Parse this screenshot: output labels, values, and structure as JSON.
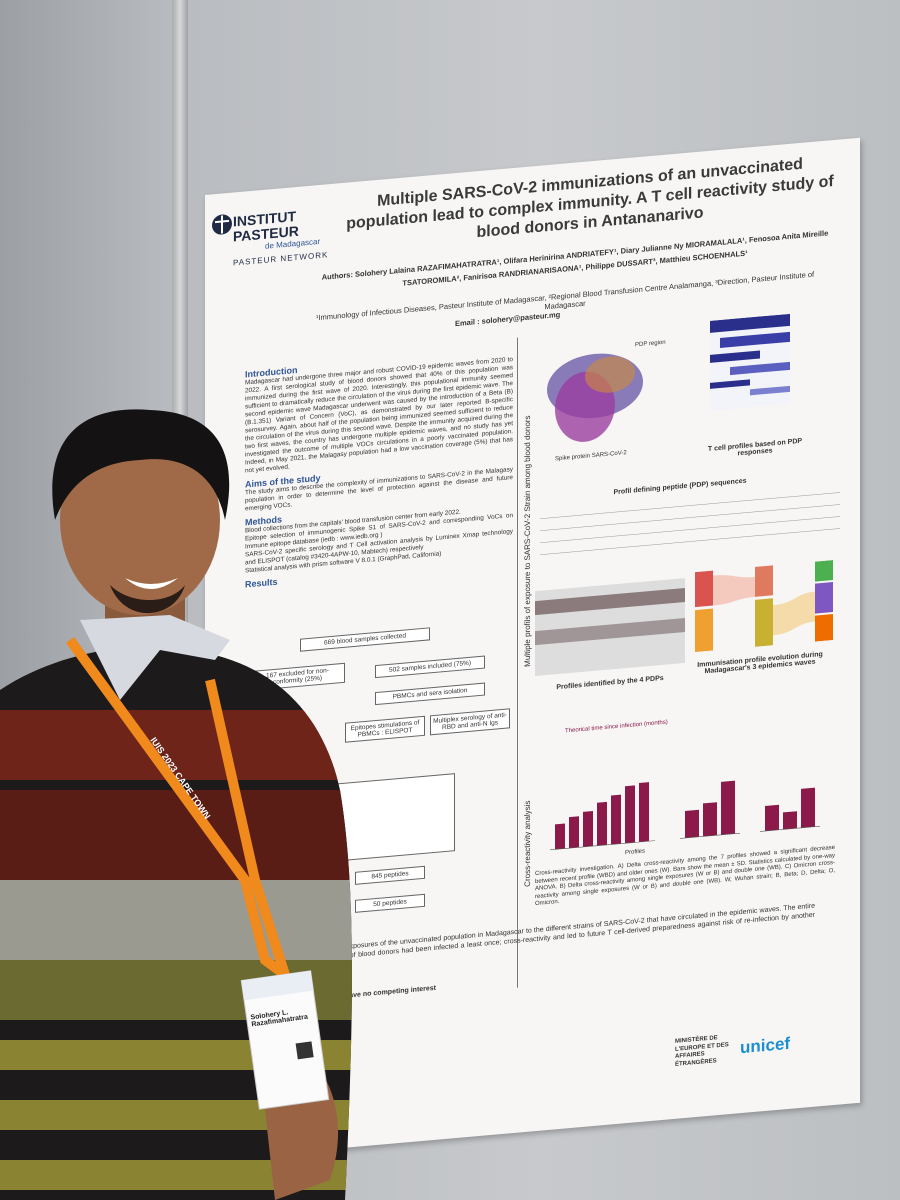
{
  "poster": {
    "logo": {
      "name": "INSTITUT PASTEUR",
      "sub": "de Madagascar",
      "network": "PASTEUR NETWORK"
    },
    "title": "Multiple SARS-CoV-2 immunizations of an unvaccinated population lead to complex immunity. A T cell reactivity study of blood donors in Antananarivo",
    "authors": "Authors: Solohery Lalaina RAZAFIMAHATRATRA¹, Olifara Herinirina ANDRIATEFY¹, Diary Julianne Ny MIORAMALALA¹, Fenosoa Anita Mireille TSATOROMILA², Fanirisoa RANDRIANARISAONA¹, Philippe DUSSART³, Matthieu SCHOENHALS¹",
    "affiliations": "¹Immunology of Infectious Diseases, Pasteur Institute of Madagascar, ²Regional Blood Transfusion Centre Analamanga, ³Direction, Pasteur Institute of Madagascar",
    "email": "Email : solohery@pasteur.mg",
    "introduction": {
      "heading": "Introduction",
      "text": "Madagascar had undergone three major and robust COVID-19 epidemic waves from 2020 to 2022. A first serological study of blood donors showed that 40% of this population was immunized during the first wave of 2020. Interestingly, this populational immunity seemed sufficient to dramatically reduce the circulation of the virus during the first epidemic wave. The second epidemic wave Madagascar underwent was caused by the introduction of a Beta (B) (B.1.351) Variant of Concern (VoC), as demonstrated by our later reported B-specific serosurvey. Again, about half of the population being immunized seemed sufficient to reduce the circulation of the virus during this second wave. Despite the immunity acquired during the two first waves, the country has undergone multiple epidemic waves, and no study has yet investigated the outcome of multiple VOCs circulations in a poorly vaccinated population. Indeed, in May 2021, the Malagasy population had a low vaccination coverage (5%) that has not yet evolved."
    },
    "aims": {
      "heading": "Aims of the study",
      "text": "The study aims to describe the complexity of immunizations to SARS-CoV-2 in the Malagasy population in order to determine the level of protection against the disease and future emerging VOCs."
    },
    "methods": {
      "heading": "Methods",
      "items": [
        "Blood collections from the capitals' blood transfusion center from early 2022.",
        "Epitope selection of immunogenic Spike S1 of SARS-CoV-2 and corresponding VoCs on Immune epitope database (iedb : www.iedb.org )",
        "SARS-CoV-2 specific serology and T Cell activation analysis by Luminex Xmap technology and ELISPOT (catalog #3420-4APW-10, Mabtech) respectively",
        "Statistical analysis with prism software V 8.0.1 (GraphPad, California)"
      ]
    },
    "results": {
      "heading": "Results",
      "flow": [
        "669 blood samples collected",
        "167 excluded for non-conformity (25%)",
        "502 samples included (75%)",
        "PBMCs and sera isolation",
        "Epitopes stimulations of PBMCs : ELISPOT",
        "Multiplex serology of anti-RBD and anti-N Igs",
        "845 peptides",
        "50 peptides"
      ]
    },
    "side_labels": [
      "Multiple profils of exposure to SARS-CoV-2 Strain among blood donors",
      "Cross-reactivity analysis"
    ],
    "figures": [
      "PDP region",
      "Spike protein SARS-CoV-2",
      "T cell profiles based on PDP responses",
      "Profil defining peptide (PDP) sequences",
      "Profiles identified by the 4 PDPs",
      "Immunisation profile evolution during Madagascar's 3 epidemics waves",
      "Theorical time since infection (months)",
      "Profiles"
    ],
    "caption": "Cross-reactivity investigation. A) Delta cross-reactivity among the 7 profiles showed a significant decrease between recent profile (WBD) and older ones (W). Bars show the mean ± SD. Statistics calculated by one-way ANOVA. B) Delta cross-reactivity among single exposures (W or B) and double one (WB). C) Omicron cross-reactivity among single exposures (W or B) and double one (WB). W, Wuhan strain; B, Beta; D, Delta; O, Omicron.",
    "conclusion": "history of exposures of the unvaccinated population in Madagascar to the different strains of SARS-CoV-2 that have circulated in the epidemic waves. The entire population of blood donors had been infected a least once; cross-reactivity and led to future T cell-derived preparedness against risk of re-infection by another strain",
    "interest": "have no competing interest",
    "footer_logos": [
      "MINISTÈRE DE L'EUROPE ET DES AFFAIRES ÉTRANGÈRES",
      "unicef"
    ]
  },
  "badge": {
    "name": "Solohery L. Razafimahatratra"
  },
  "lanyard": "IUIS 2023 CAPE TOWN"
}
